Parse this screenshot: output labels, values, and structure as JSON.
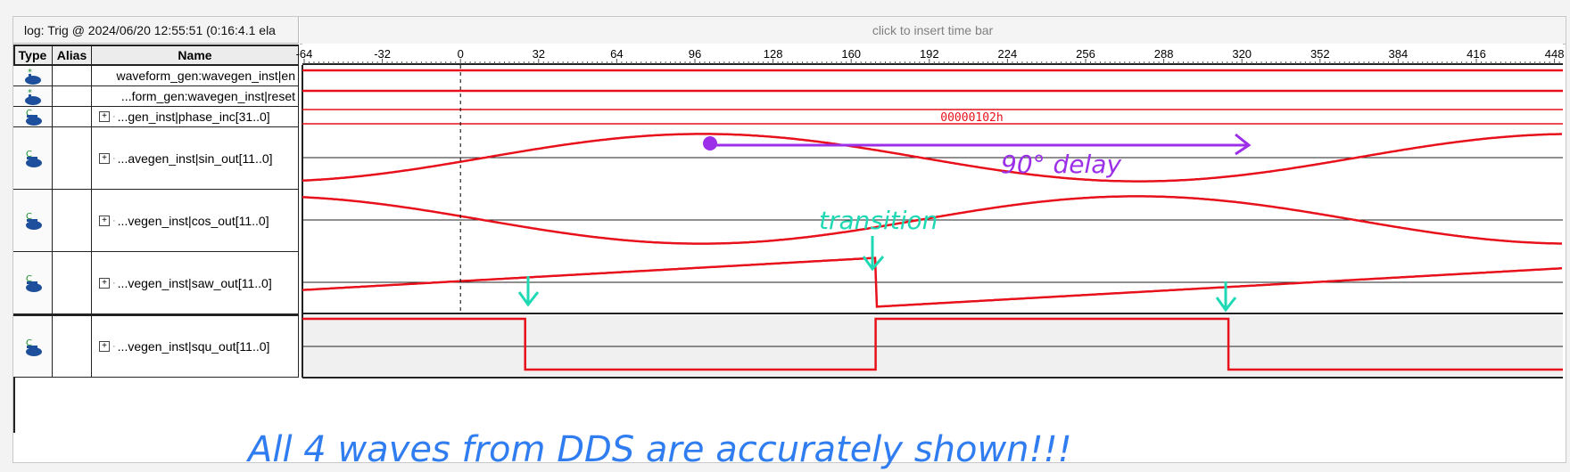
{
  "header": {
    "log_label": "log: Trig @ 2024/06/20 12:55:51 (0:16:4.1 ela",
    "timebar_hint": "click to insert time bar"
  },
  "columns": {
    "type": "Type",
    "alias": "Alias",
    "name": "Name"
  },
  "time_axis": {
    "ticks": [
      "-64",
      "-32",
      "0",
      "32",
      "64",
      "96",
      "128",
      "160",
      "192",
      "224",
      "256",
      "288",
      "320",
      "352",
      "384",
      "416",
      "448"
    ]
  },
  "signals": [
    {
      "name": "waveform_gen:wavegen_inst|en",
      "icon": "input-pin-icon",
      "expandable": false
    },
    {
      "name": "...form_gen:wavegen_inst|reset",
      "icon": "input-pin-icon",
      "expandable": false
    },
    {
      "name": "...gen_inst|phase_inc[31..0]",
      "icon": "bus-icon",
      "expandable": true,
      "value": "00000102h"
    },
    {
      "name": "...avegen_inst|sin_out[11..0]",
      "icon": "bus-icon",
      "expandable": true
    },
    {
      "name": "...vegen_inst|cos_out[11..0]",
      "icon": "bus-icon",
      "expandable": true
    },
    {
      "name": "...vegen_inst|saw_out[11..0]",
      "icon": "bus-icon",
      "expandable": true
    },
    {
      "name": "...vegen_inst|squ_out[11..0]",
      "icon": "bus-icon",
      "expandable": true
    }
  ],
  "annotations": {
    "delay_label": "90° delay",
    "transition_label": "transition",
    "footer_note": "All 4 waves from DDS are accurately shown!!!"
  },
  "colors": {
    "wave": "#e8101a",
    "annotation_purple": "#9b30e8",
    "annotation_teal": "#1fd9b4",
    "annotation_blue": "#2f7df0"
  }
}
